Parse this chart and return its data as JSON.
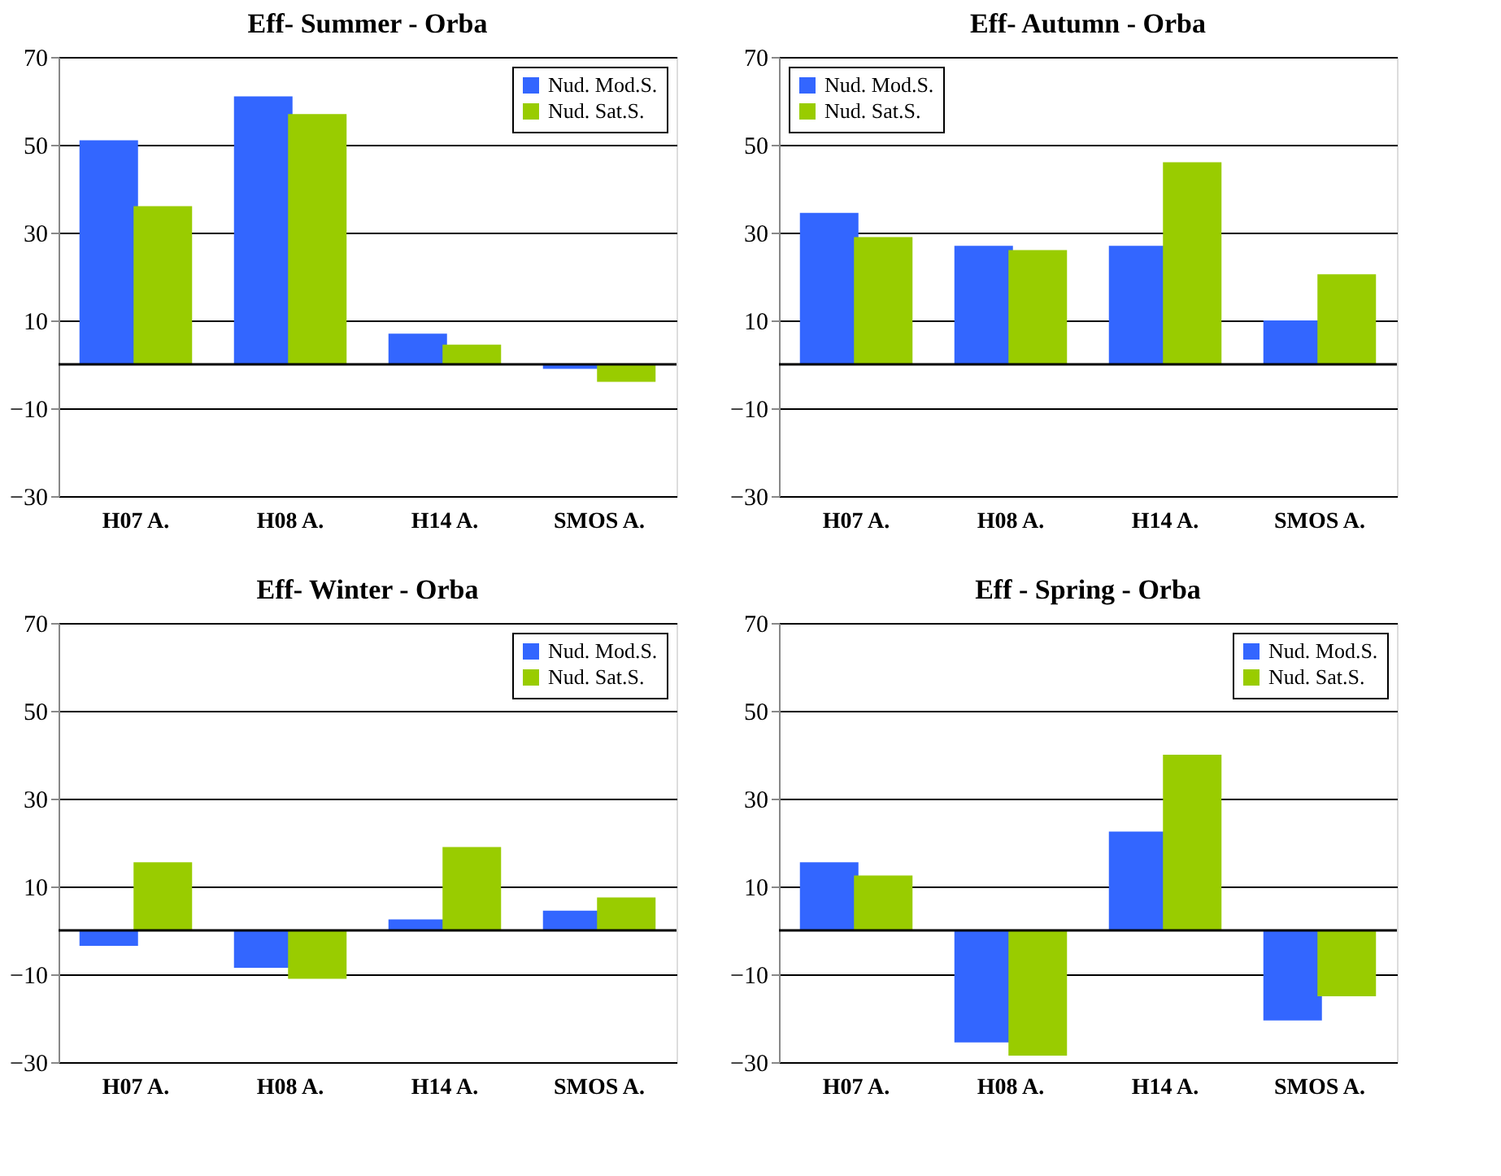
{
  "chart_data": [
    {
      "type": "bar",
      "title": "Eff- Summer - Orba",
      "categories": [
        "H07 A.",
        "H08 A.",
        "H14 A.",
        "SMOS A."
      ],
      "ylim": [
        -30,
        70
      ],
      "yticks": [
        -30,
        -10,
        10,
        30,
        50,
        70
      ],
      "grid": "y",
      "legend": "top right",
      "ref_lines": [
        {
          "axis": "y",
          "value": 0,
          "color": "#000000"
        }
      ],
      "series": [
        {
          "name": "Nud. Mod.S.",
          "color": "#3366ff",
          "values": [
            51,
            61,
            7,
            -1
          ]
        },
        {
          "name": "Nud. Sat.S.",
          "color": "#99cc00",
          "values": [
            36,
            57,
            4.5,
            -4
          ]
        }
      ]
    },
    {
      "type": "bar",
      "title": "Eff- Autumn - Orba",
      "categories": [
        "H07 A.",
        "H08 A.",
        "H14 A.",
        "SMOS A."
      ],
      "ylim": [
        -30,
        70
      ],
      "yticks": [
        -30,
        -10,
        10,
        30,
        50,
        70
      ],
      "grid": "y",
      "legend": "top left",
      "ref_lines": [
        {
          "axis": "y",
          "value": 0,
          "color": "#000000"
        }
      ],
      "series": [
        {
          "name": "Nud. Mod.S.",
          "color": "#3366ff",
          "values": [
            34.5,
            27,
            27,
            10
          ]
        },
        {
          "name": "Nud. Sat.S.",
          "color": "#99cc00",
          "values": [
            29,
            26,
            46,
            20.5
          ]
        }
      ]
    },
    {
      "type": "bar",
      "title": "Eff- Winter - Orba",
      "categories": [
        "H07 A.",
        "H08 A.",
        "H14 A.",
        "SMOS A."
      ],
      "ylim": [
        -30,
        70
      ],
      "yticks": [
        -30,
        -10,
        10,
        30,
        50,
        70
      ],
      "grid": "y",
      "legend": "top right",
      "ref_lines": [
        {
          "axis": "y",
          "value": 0,
          "color": "#000000"
        }
      ],
      "series": [
        {
          "name": "Nud. Mod.S.",
          "color": "#3366ff",
          "values": [
            -3.5,
            -8.5,
            2.5,
            4.5
          ]
        },
        {
          "name": "Nud. Sat.S.",
          "color": "#99cc00",
          "values": [
            15.5,
            -11,
            19,
            7.5
          ]
        }
      ]
    },
    {
      "type": "bar",
      "title": "Eff - Spring - Orba",
      "categories": [
        "H07 A.",
        "H08 A.",
        "H14 A.",
        "SMOS A."
      ],
      "ylim": [
        -30,
        70
      ],
      "yticks": [
        -30,
        -10,
        10,
        30,
        50,
        70
      ],
      "grid": "y",
      "legend": "top right",
      "ref_lines": [
        {
          "axis": "y",
          "value": 0,
          "color": "#000000"
        }
      ],
      "series": [
        {
          "name": "Nud. Mod.S.",
          "color": "#3366ff",
          "values": [
            15.5,
            -25.5,
            22.5,
            -20.5
          ]
        },
        {
          "name": "Nud. Sat.S.",
          "color": "#99cc00",
          "values": [
            12.5,
            -28.5,
            40,
            -15
          ]
        }
      ]
    }
  ]
}
